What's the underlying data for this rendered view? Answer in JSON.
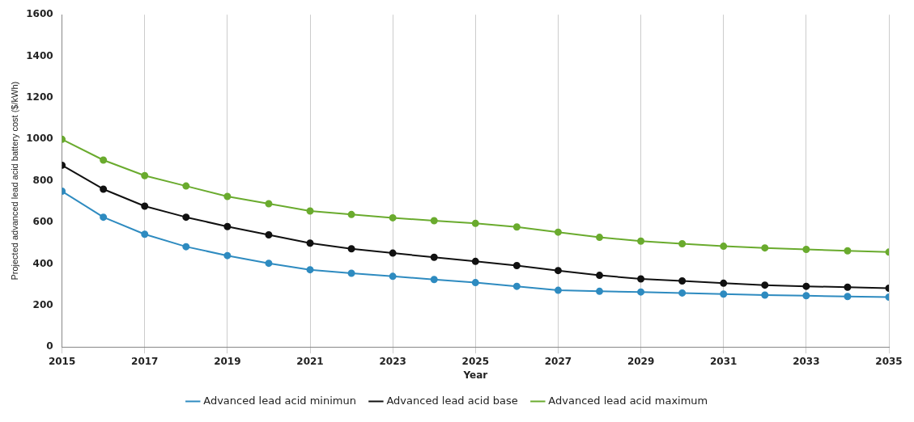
{
  "chart_data": {
    "type": "line",
    "xlabel": "Year",
    "ylabel": "Projected advanced lead acid battery cost ($/kWh)",
    "x": [
      2015,
      2016,
      2017,
      2018,
      2019,
      2020,
      2021,
      2022,
      2023,
      2024,
      2025,
      2026,
      2027,
      2028,
      2029,
      2030,
      2031,
      2032,
      2033,
      2034,
      2035
    ],
    "series": [
      {
        "name": "Advanced lead acid minimun",
        "color": "#2e8bc0",
        "values": [
          750,
          625,
          543,
          483,
          440,
          403,
          372,
          355,
          340,
          325,
          310,
          292,
          273,
          268,
          265,
          260,
          255,
          250,
          247,
          243,
          240
        ]
      },
      {
        "name": "Advanced lead acid base",
        "color": "#111111",
        "values": [
          875,
          760,
          678,
          625,
          580,
          540,
          500,
          473,
          452,
          432,
          412,
          392,
          368,
          345,
          328,
          318,
          307,
          298,
          292,
          288,
          283
        ]
      },
      {
        "name": "Advanced lead acid maximum",
        "color": "#6aab2e",
        "values": [
          1000,
          900,
          825,
          775,
          725,
          690,
          655,
          638,
          622,
          608,
          595,
          578,
          553,
          528,
          510,
          497,
          485,
          477,
          470,
          463,
          457
        ]
      }
    ],
    "xlim": [
      2015,
      2035
    ],
    "xticks": [
      2015,
      2017,
      2019,
      2021,
      2023,
      2025,
      2027,
      2029,
      2031,
      2033,
      2035
    ],
    "ylim": [
      0,
      1600
    ],
    "yticks": [
      0,
      200,
      400,
      600,
      800,
      1000,
      1200,
      1400,
      1600
    ],
    "grid": "x",
    "legend": "bottom",
    "marker": "circle",
    "line_style": "solid"
  }
}
